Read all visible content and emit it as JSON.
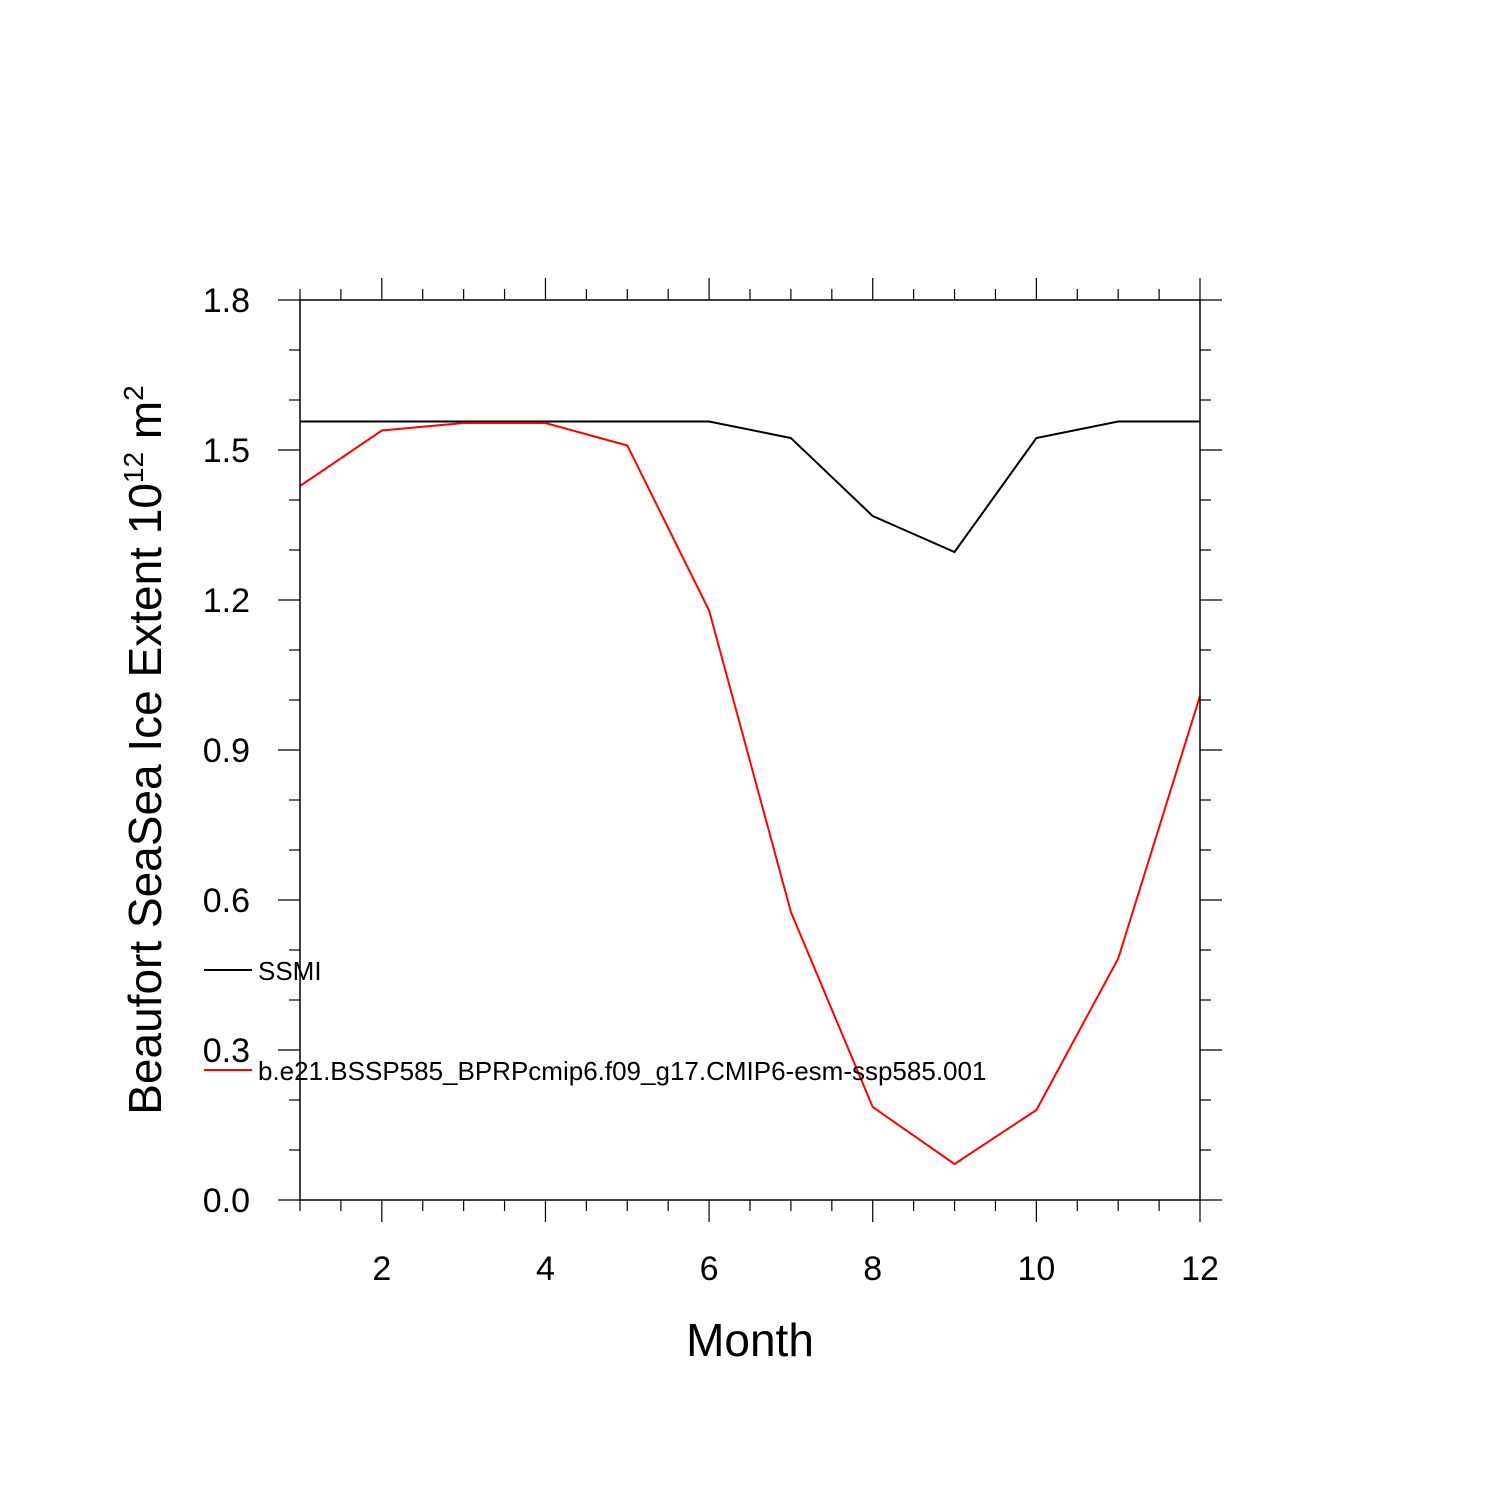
{
  "chart_data": {
    "type": "line",
    "xlabel": "Month",
    "ylabel": {
      "prefix": "Beaufort SeaSea Ice Extent 10",
      "superscript_1": "12",
      "unit": " m",
      "superscript_2": "2"
    },
    "xlim": [
      1,
      12
    ],
    "ylim": [
      0.0,
      1.8
    ],
    "x_ticks": [
      2,
      4,
      6,
      8,
      10,
      12
    ],
    "x_tick_labels": [
      "2",
      "4",
      "6",
      "8",
      "10",
      "12"
    ],
    "y_ticks": [
      0.0,
      0.3,
      0.6,
      0.9,
      1.2,
      1.5,
      1.8
    ],
    "y_tick_labels": [
      "0.0",
      "0.3",
      "0.6",
      "0.9",
      "1.2",
      "1.5",
      "1.8"
    ],
    "x": [
      1,
      2,
      3,
      4,
      5,
      6,
      7,
      8,
      9,
      10,
      11,
      12
    ],
    "series": [
      {
        "name": "SSMI",
        "color": "#000000",
        "values": [
          1.557,
          1.557,
          1.557,
          1.557,
          1.557,
          1.557,
          1.524,
          1.368,
          1.296,
          1.524,
          1.557,
          1.557
        ]
      },
      {
        "name": "b.e21.BSSP585_BPRPcmip6.f09_g17.CMIP6-esm-ssp585.001",
        "color": "#ff0000",
        "values": [
          1.428,
          1.539,
          1.554,
          1.554,
          1.509,
          1.179,
          0.576,
          0.186,
          0.072,
          0.18,
          0.483,
          1.008
        ]
      }
    ],
    "grid": false,
    "legend_position": "left, inside plot area"
  }
}
